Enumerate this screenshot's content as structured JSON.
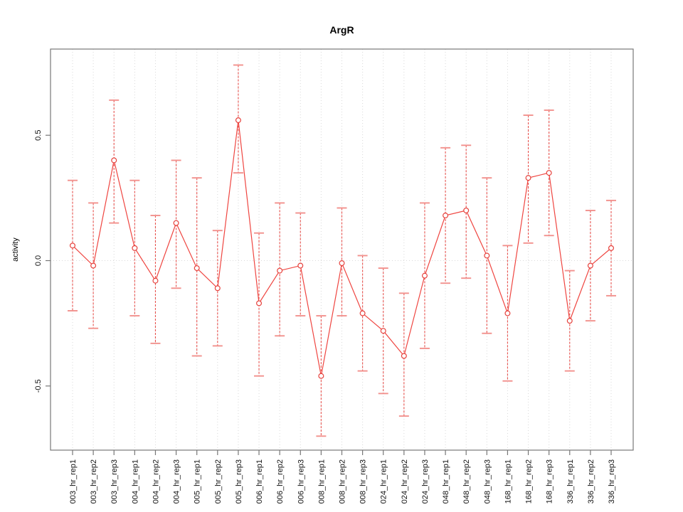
{
  "chart_data": {
    "type": "line",
    "title": "ArgR",
    "xlabel": "",
    "ylabel": "activity",
    "ylim": [
      -0.76,
      0.85
    ],
    "grid": "vertical dotted gridline at every category; dotted horizontal line at y=0",
    "legend_position": "none",
    "x_label_rotation": 90,
    "point_style": "open-circle",
    "error_bars": true,
    "yticks": [
      {
        "value": 0.5,
        "label": "0.5"
      },
      {
        "value": 0.0,
        "label": "0.0"
      },
      {
        "value": -0.5,
        "label": "-0.5"
      }
    ],
    "categories": [
      "003_hr_rep1",
      "003_hr_rep2",
      "003_hr_rep3",
      "004_hr_rep1",
      "004_hr_rep2",
      "004_hr_rep3",
      "005_hr_rep1",
      "005_hr_rep2",
      "005_hr_rep3",
      "006_hr_rep1",
      "006_hr_rep2",
      "006_hr_rep3",
      "008_hr_rep1",
      "008_hr_rep2",
      "008_hr_rep3",
      "024_hr_rep1",
      "024_hr_rep2",
      "024_hr_rep3",
      "048_hr_rep1",
      "048_hr_rep2",
      "048_hr_rep3",
      "168_hr_rep1",
      "168_hr_rep2",
      "168_hr_rep3",
      "336_hr_rep1",
      "336_hr_rep2",
      "336_hr_rep3"
    ],
    "series": [
      {
        "name": "activity",
        "values": [
          0.06,
          -0.02,
          0.4,
          0.05,
          -0.08,
          0.15,
          -0.03,
          -0.11,
          0.56,
          -0.17,
          -0.04,
          -0.02,
          -0.46,
          -0.01,
          -0.21,
          -0.28,
          -0.38,
          -0.06,
          0.18,
          0.2,
          0.02,
          -0.21,
          0.33,
          0.35,
          -0.24,
          -0.02,
          0.05
        ],
        "upper": [
          0.32,
          0.23,
          0.64,
          0.32,
          0.18,
          0.4,
          0.33,
          0.12,
          0.78,
          0.11,
          0.23,
          0.19,
          -0.22,
          0.21,
          0.02,
          -0.03,
          -0.13,
          0.23,
          0.45,
          0.46,
          0.33,
          0.06,
          0.58,
          0.6,
          -0.04,
          0.2,
          0.24
        ],
        "lower": [
          -0.2,
          -0.27,
          0.15,
          -0.22,
          -0.33,
          -0.11,
          -0.38,
          -0.34,
          0.35,
          -0.46,
          -0.3,
          -0.22,
          -0.7,
          -0.22,
          -0.44,
          -0.53,
          -0.62,
          -0.35,
          -0.09,
          -0.07,
          -0.29,
          -0.48,
          0.07,
          0.1,
          -0.44,
          -0.24,
          -0.14
        ]
      }
    ],
    "colors": {
      "series": "#ef4540",
      "error_bar_stem": "#e8534f",
      "error_bar_cap": "#f2918d",
      "gridline": "#d9d9d9",
      "box": "#777777",
      "text": "#111111"
    }
  }
}
